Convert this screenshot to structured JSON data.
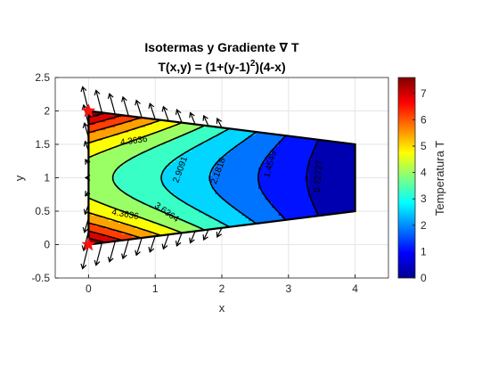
{
  "chart_data": {
    "type": "contour",
    "title": "Isotermas y Gradiente ∇ T",
    "subtitle_parts": [
      "T(x,y) = (1+(y-1)",
      "2",
      ")(4-x)"
    ],
    "xlabel": "x",
    "ylabel": "y",
    "xlim": [
      -0.5,
      4.5
    ],
    "ylim": [
      -0.5,
      2.5
    ],
    "xticks": [
      "0",
      "1",
      "2",
      "3",
      "4"
    ],
    "yticks": [
      "-0.5",
      "0",
      "0.5",
      "1",
      "1.5",
      "2",
      "2.5"
    ],
    "grid": true,
    "colorbar": {
      "label": "Temperatura T",
      "ticks": [
        "0",
        "1",
        "2",
        "3",
        "4",
        "5",
        "6",
        "7"
      ],
      "range": [
        0,
        7.6
      ]
    },
    "domain_polygon": [
      [
        0,
        2
      ],
      [
        4,
        1.5
      ],
      [
        4,
        0.5
      ],
      [
        0,
        0
      ]
    ],
    "contour_levels": [
      0.7273,
      1.4545,
      2.1818,
      2.9091,
      3.6364,
      4.3636
    ],
    "contour_labels": [
      {
        "text": "4.3636",
        "x": 0.68,
        "y": 1.55,
        "rot": -8
      },
      {
        "text": "2.9091",
        "x": 1.38,
        "y": 1.12,
        "rot": -70
      },
      {
        "text": "2.1818",
        "x": 1.95,
        "y": 1.1,
        "rot": -70
      },
      {
        "text": "1.4545",
        "x": 2.73,
        "y": 1.2,
        "rot": -75
      },
      {
        "text": "0.72727",
        "x": 3.45,
        "y": 1.02,
        "rot": -85
      },
      {
        "text": "4.3636",
        "x": 0.55,
        "y": 0.45,
        "rot": 10
      },
      {
        "text": "3.6364",
        "x": 1.17,
        "y": 0.48,
        "rot": 35
      }
    ],
    "markers": [
      {
        "x": 0,
        "y": 2,
        "label": "star"
      },
      {
        "x": 0,
        "y": 0,
        "label": "star"
      }
    ]
  }
}
